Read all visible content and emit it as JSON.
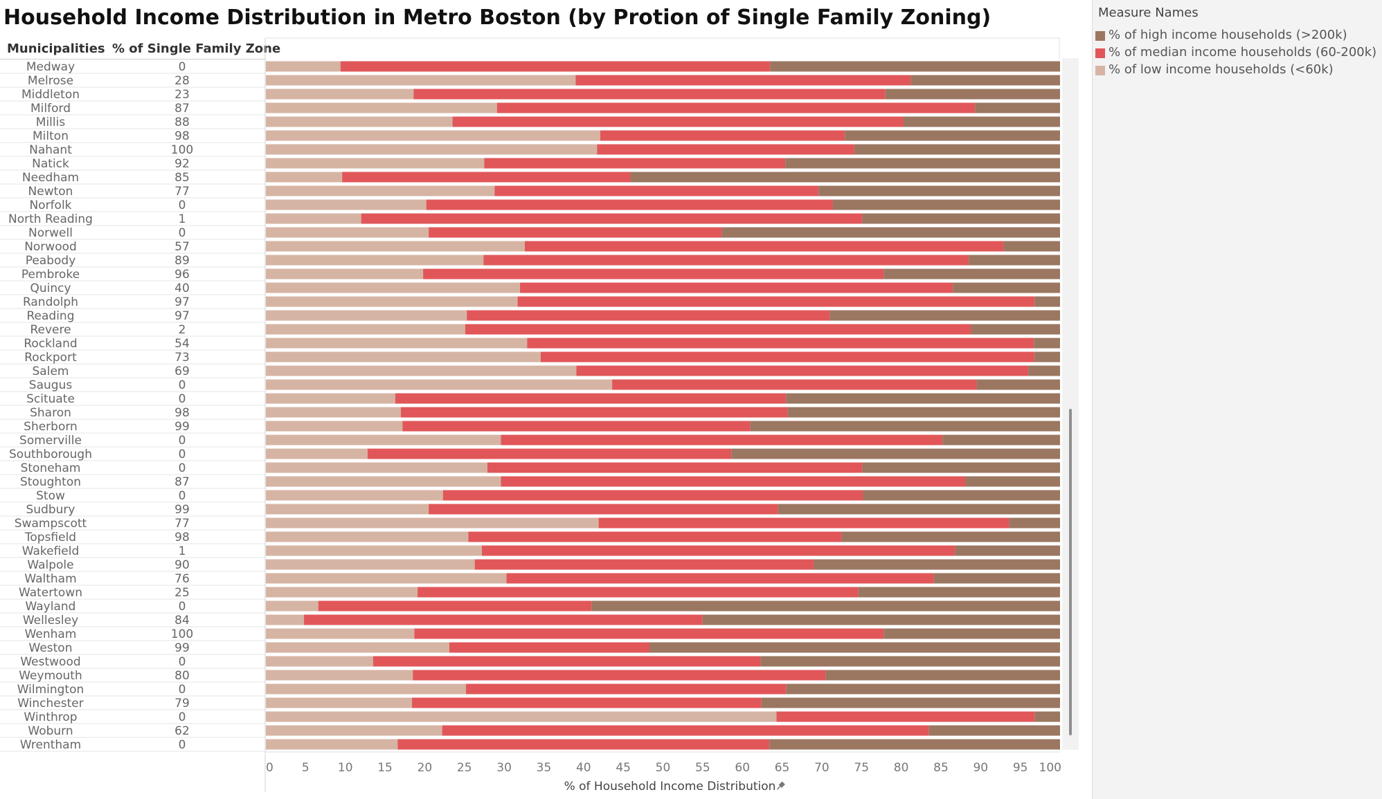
{
  "title": "Household Income Distribution in Metro Boston (by Protion of Single Family Zoning)",
  "column_headers": {
    "municipality": "Municipalities",
    "pct_single_family": "% of Single Family Zone"
  },
  "legend": {
    "title": "Measure Names",
    "items": [
      {
        "label": "% of high income households (>200k)",
        "color": "#9b7761"
      },
      {
        "label": "% of median income households (60-200k)",
        "color": "#e15759"
      },
      {
        "label": "% of low income households (<60k)",
        "color": "#d6b4a3"
      }
    ]
  },
  "chart_data": {
    "type": "bar",
    "orientation": "horizontal",
    "stacked": true,
    "xlabel": "% of Household Income Distribution",
    "xlim": [
      0,
      100
    ],
    "xticks": [
      0,
      5,
      10,
      15,
      20,
      25,
      30,
      35,
      40,
      45,
      50,
      55,
      60,
      65,
      70,
      75,
      80,
      85,
      90,
      95,
      100
    ],
    "categories": [
      "Medway",
      "Melrose",
      "Middleton",
      "Milford",
      "Millis",
      "Milton",
      "Nahant",
      "Natick",
      "Needham",
      "Newton",
      "Norfolk",
      "North Reading",
      "Norwell",
      "Norwood",
      "Peabody",
      "Pembroke",
      "Quincy",
      "Randolph",
      "Reading",
      "Revere",
      "Rockland",
      "Rockport",
      "Salem",
      "Saugus",
      "Scituate",
      "Sharon",
      "Sherborn",
      "Somerville",
      "Southborough",
      "Stoneham",
      "Stoughton",
      "Stow",
      "Sudbury",
      "Swampscott",
      "Topsfield",
      "Wakefield",
      "Walpole",
      "Waltham",
      "Watertown",
      "Wayland",
      "Wellesley",
      "Wenham",
      "Weston",
      "Westwood",
      "Weymouth",
      "Wilmington",
      "Winchester",
      "Winthrop",
      "Woburn",
      "Wrentham"
    ],
    "pct_single_family_zone": [
      0,
      28,
      23,
      87,
      88,
      98,
      100,
      92,
      85,
      77,
      0,
      1,
      0,
      57,
      89,
      96,
      40,
      97,
      97,
      2,
      54,
      73,
      69,
      0,
      0,
      98,
      99,
      0,
      0,
      0,
      87,
      0,
      99,
      77,
      98,
      1,
      90,
      76,
      25,
      0,
      84,
      100,
      99,
      0,
      80,
      0,
      79,
      0,
      62,
      0
    ],
    "series": [
      {
        "name": "% of low income households (<60k)",
        "values": [
          9.4,
          39.0,
          18.6,
          29.1,
          23.5,
          42.1,
          41.7,
          27.5,
          9.6,
          28.8,
          20.2,
          12.0,
          20.5,
          32.6,
          27.4,
          19.8,
          32.0,
          31.7,
          25.3,
          25.1,
          32.9,
          34.6,
          39.1,
          43.6,
          16.3,
          17.0,
          17.2,
          29.6,
          12.8,
          27.9,
          29.6,
          22.3,
          20.5,
          41.9,
          25.5,
          27.2,
          26.3,
          30.3,
          19.1,
          6.6,
          4.8,
          18.7,
          23.1,
          13.5,
          18.5,
          25.2,
          18.4,
          64.3,
          22.2,
          16.6
        ]
      },
      {
        "name": "% of median income households (60-200k)",
        "values": [
          54.1,
          42.2,
          59.4,
          60.2,
          56.8,
          30.8,
          32.4,
          37.9,
          36.3,
          40.8,
          51.2,
          63.1,
          36.9,
          60.3,
          61.1,
          58.0,
          54.5,
          65.1,
          45.7,
          63.7,
          63.8,
          62.2,
          56.9,
          45.9,
          49.2,
          48.7,
          43.8,
          55.6,
          45.8,
          47.2,
          58.5,
          52.9,
          44.0,
          51.7,
          47.0,
          59.6,
          42.7,
          53.8,
          55.5,
          34.4,
          50.2,
          59.1,
          25.2,
          48.8,
          52.0,
          40.3,
          44.0,
          32.5,
          61.3,
          46.8
        ]
      },
      {
        "name": "% of high income households (>200k)",
        "values": [
          36.5,
          18.8,
          22.0,
          10.7,
          19.7,
          27.1,
          25.9,
          34.6,
          54.1,
          30.4,
          28.6,
          24.9,
          42.6,
          7.1,
          11.5,
          22.2,
          13.5,
          3.2,
          29.0,
          11.2,
          3.3,
          3.2,
          4.0,
          10.5,
          34.5,
          34.3,
          39.0,
          14.8,
          41.4,
          24.9,
          11.9,
          24.8,
          35.5,
          6.4,
          27.5,
          13.2,
          31.0,
          15.9,
          25.4,
          59.0,
          45.0,
          22.2,
          51.7,
          37.7,
          29.5,
          34.5,
          37.6,
          3.2,
          16.5,
          36.6
        ]
      }
    ]
  }
}
